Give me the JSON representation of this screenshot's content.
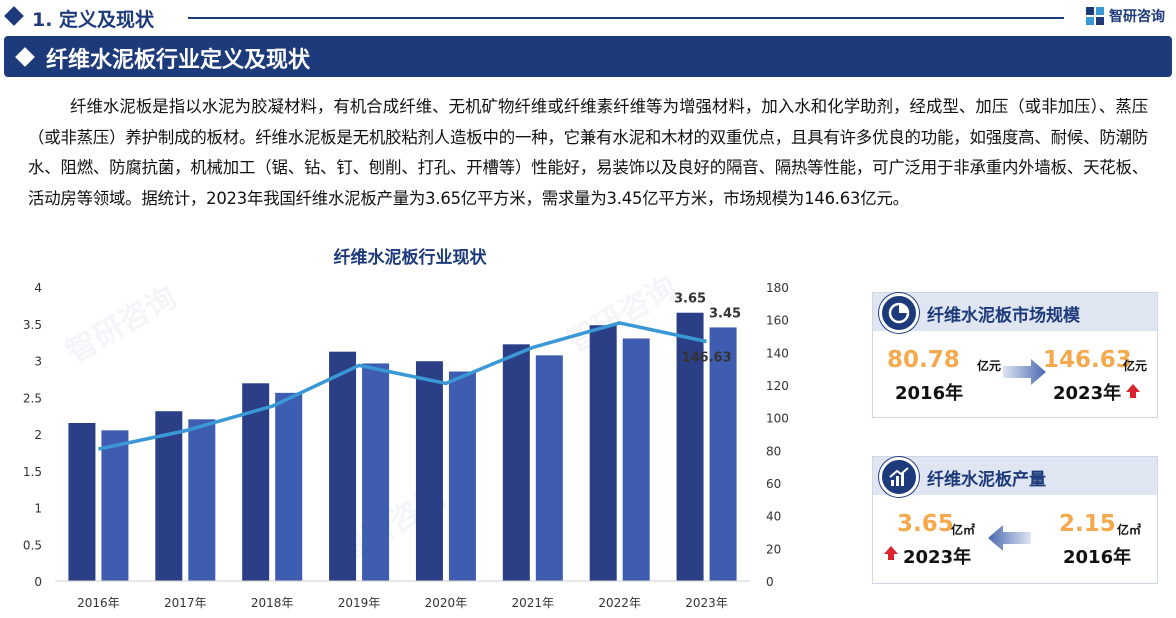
{
  "header": {
    "section_title": "1. 定义及现状",
    "brand_name": "智研咨询"
  },
  "banner": {
    "title": "纤维水泥板行业定义及现状"
  },
  "intro_paragraph": "纤维水泥板是指以水泥为胶凝材料，有机合成纤维、无机矿物纤维或纤维素纤维等为增强材料，加入水和化学助剂，经成型、加压（或非加压）、蒸压（或非蒸压）养护制成的板材。纤维水泥板是无机胶粘剂人造板中的一种，它兼有水泥和木材的双重优点，且具有许多优良的功能，如强度高、耐候、防潮防水、阻燃、防腐抗菌，机械加工（锯、钻、钉、刨削、打孔、开槽等）性能好，易装饰以及良好的隔音、隔热等性能，可广泛用于非承重内外墙板、天花板、活动房等领域。据统计，2023年我国纤维水泥板产量为3.65亿平方米，需求量为3.45亿平方米，市场规模为146.63亿元。",
  "watermark_text": "智研咨询",
  "chart_data": {
    "type": "bar",
    "title": "纤维水泥板行业现状",
    "categories": [
      "2016年",
      "2017年",
      "2018年",
      "2019年",
      "2020年",
      "2021年",
      "2022年",
      "2023年"
    ],
    "series": [
      {
        "type": "bar",
        "axis": "left",
        "color": "#2b3f86",
        "values": [
          2.15,
          2.31,
          2.69,
          3.12,
          2.99,
          3.22,
          3.48,
          3.65
        ]
      },
      {
        "type": "bar",
        "axis": "left",
        "color": "#3f5db0",
        "values": [
          2.05,
          2.2,
          2.56,
          2.96,
          2.85,
          3.07,
          3.3,
          3.45
        ]
      },
      {
        "type": "line",
        "axis": "right",
        "color": "#3a98d6",
        "values": [
          80.78,
          92,
          107,
          132,
          121,
          143,
          158,
          146.63
        ]
      }
    ],
    "y_left": {
      "min": 0,
      "max": 4,
      "ticks": [
        "0",
        "0.5",
        "1",
        "1.5",
        "2",
        "2.5",
        "3",
        "3.5",
        "4"
      ]
    },
    "y_right": {
      "min": 0,
      "max": 180,
      "ticks": [
        "0",
        "20",
        "40",
        "60",
        "80",
        "100",
        "120",
        "140",
        "160",
        "180"
      ]
    },
    "data_labels": {
      "bar1_last": "3.65",
      "bar2_last": "3.45",
      "line_last": "146.63"
    },
    "grid": false,
    "legend": "none"
  },
  "market_card": {
    "title": "纤维水泥板市场规模",
    "from_value": "80.78",
    "from_unit": "亿元",
    "from_year": "2016年",
    "to_value": "146.63",
    "to_unit": "亿元",
    "to_year": "2023年"
  },
  "output_card": {
    "title": "纤维水泥板产量",
    "latest_value": "3.65",
    "latest_unit": "亿㎡",
    "latest_year": "2023年",
    "base_value": "2.15",
    "base_unit": "亿㎡",
    "base_year": "2016年"
  },
  "colors": {
    "brand_navy": "#1d3a7a",
    "accent_orange": "#f5a94e",
    "up_arrow_red": "#d9232d"
  }
}
